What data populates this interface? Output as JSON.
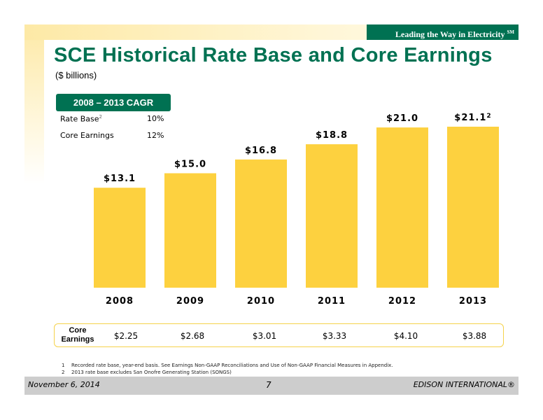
{
  "header": {
    "tagline": "Leading the Way in Electricity",
    "tagline_mark": "SM",
    "title": "SCE Historical Rate Base and Core Earnings",
    "subtitle": "($ billions)"
  },
  "cagr": {
    "header": "2008 – 2013 CAGR",
    "rows": [
      {
        "label": "Rate Base",
        "label_sup": "2",
        "value": "10%"
      },
      {
        "label": "Core Earnings",
        "label_sup": "",
        "value": "12%"
      }
    ]
  },
  "chart_data": {
    "type": "bar",
    "categories": [
      "2008",
      "2009",
      "2010",
      "2011",
      "2012",
      "2013"
    ],
    "values": [
      13.1,
      15.0,
      16.8,
      18.8,
      21.0,
      21.1
    ],
    "data_labels": [
      "$13.1",
      "$15.0",
      "$16.8",
      "$18.8",
      "$21.0",
      "$21.1"
    ],
    "data_label_sups": [
      "",
      "",
      "",
      "",
      "",
      "2"
    ],
    "ylim": [
      0,
      21.1
    ],
    "bar_color": "#fdd13f",
    "category_color": "#000000",
    "grid": false
  },
  "core_earnings": {
    "label_line1": "Core",
    "label_line2": "Earnings",
    "values": [
      "$2.25",
      "$2.68",
      "$3.01",
      "$3.33",
      "$4.10",
      "$3.88"
    ]
  },
  "footnotes": [
    {
      "num": "1",
      "text": "Recorded rate base, year-end basis. See Earnings Non-GAAP Reconciliations and Use of Non-GAAP Financial Measures in Appendix."
    },
    {
      "num": "2",
      "text": "2013 rate base excludes San Onofre Generating Station (SONGS)"
    }
  ],
  "footer": {
    "date": "November 6, 2014",
    "page": "7",
    "brand": "EDISON INTERNATIONAL®"
  },
  "colors": {
    "brand_green": "#007152",
    "bar_yellow": "#fdd13f",
    "footer_gray": "#cdcdcd"
  }
}
